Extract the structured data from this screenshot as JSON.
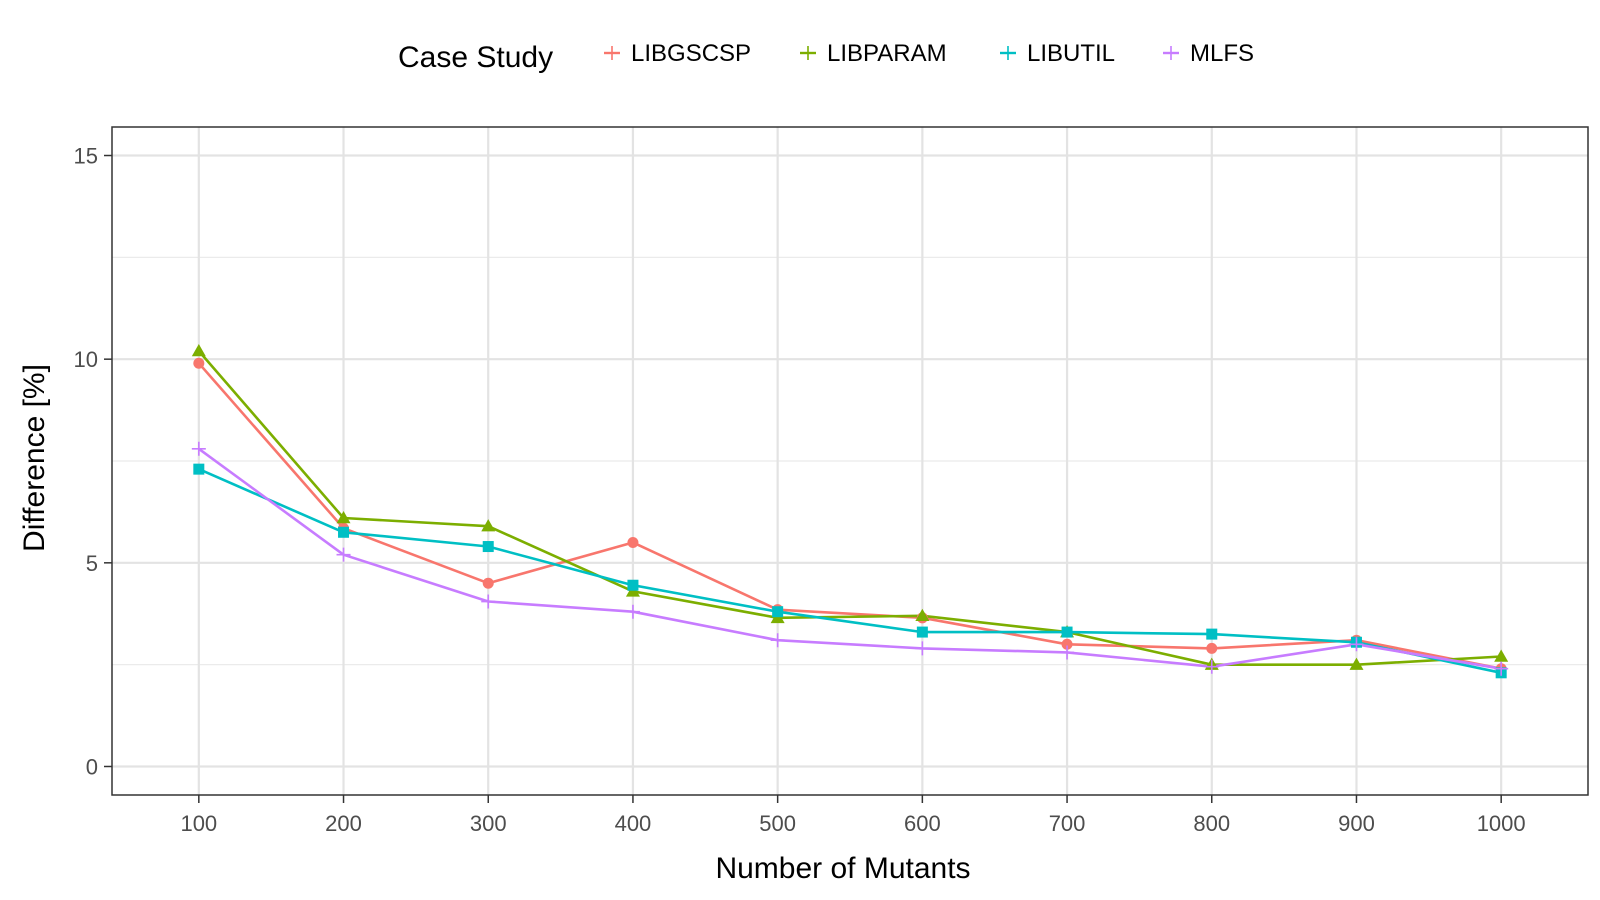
{
  "chart_data": {
    "type": "line",
    "xlabel": "Number of Mutants",
    "ylabel": "Difference [%]",
    "x": [
      100,
      200,
      300,
      400,
      500,
      600,
      700,
      800,
      900,
      1000
    ],
    "xlim": [
      40,
      1060
    ],
    "ylim": [
      -0.7,
      15.7
    ],
    "x_ticks": [
      "100",
      "200",
      "300",
      "400",
      "500",
      "600",
      "700",
      "800",
      "900",
      "1000"
    ],
    "y_ticks": [
      "0",
      "5",
      "10",
      "15"
    ],
    "y_tick_values": [
      0,
      5,
      10,
      15
    ],
    "y_minor_values": [
      2.5,
      7.5,
      12.5
    ],
    "grid": true,
    "legend": {
      "title": "Case Study",
      "position": "top"
    },
    "series": [
      {
        "name": "LIBGSCSP",
        "color": "#F8766D",
        "marker": "circle",
        "values": [
          9.9,
          5.85,
          4.5,
          5.5,
          3.85,
          3.65,
          3.0,
          2.9,
          3.1,
          2.4
        ]
      },
      {
        "name": "LIBPARAM",
        "color": "#7CAE00",
        "marker": "triangle",
        "values": [
          10.2,
          6.1,
          5.9,
          4.3,
          3.65,
          3.7,
          3.3,
          2.5,
          2.5,
          2.7
        ]
      },
      {
        "name": "LIBUTIL",
        "color": "#00BFC4",
        "marker": "square",
        "values": [
          7.3,
          5.75,
          5.4,
          4.45,
          3.8,
          3.3,
          3.3,
          3.25,
          3.05,
          2.3
        ]
      },
      {
        "name": "MLFS",
        "color": "#C77CFF",
        "marker": "plus",
        "values": [
          7.8,
          5.2,
          4.05,
          3.8,
          3.1,
          2.9,
          2.8,
          2.45,
          3.0,
          2.4
        ]
      }
    ]
  }
}
